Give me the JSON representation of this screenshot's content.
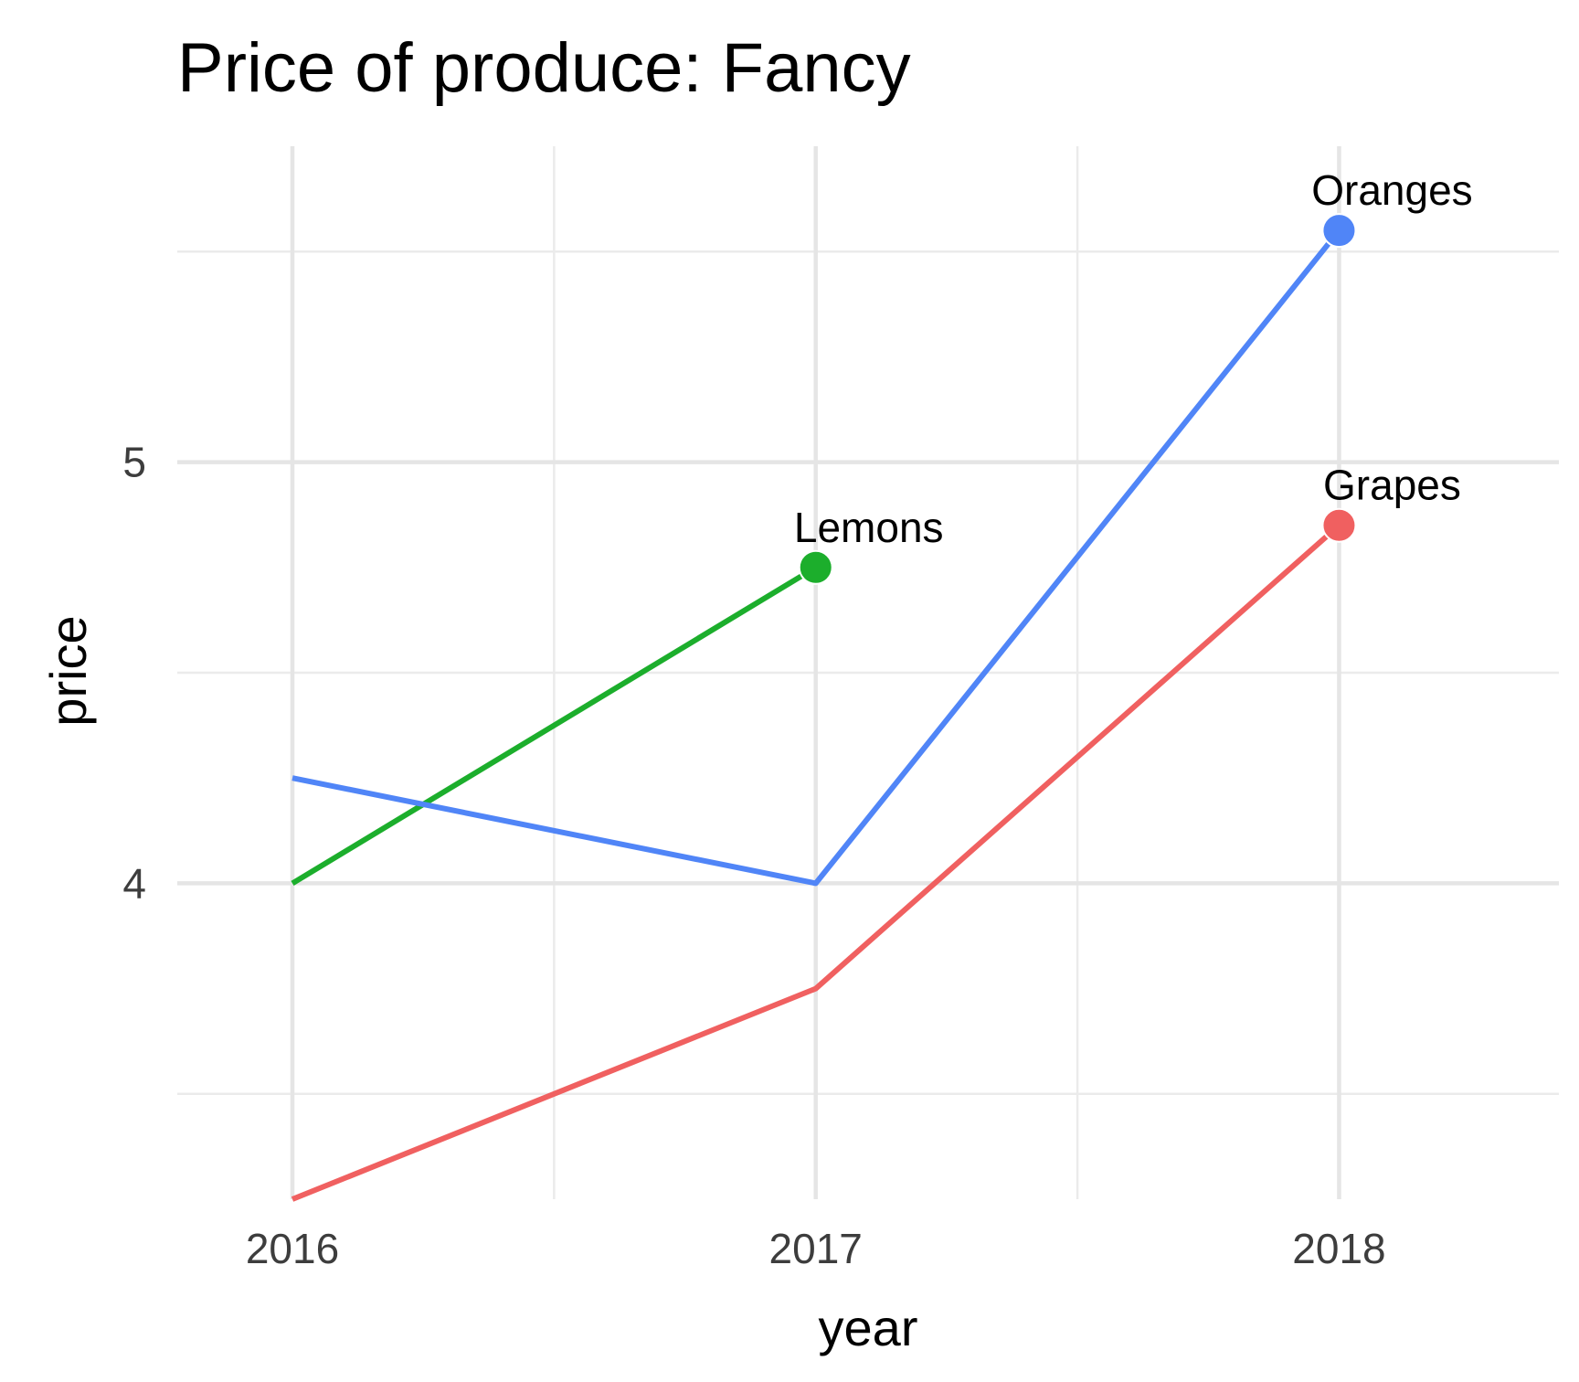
{
  "chart_data": {
    "type": "line",
    "title": "Price of produce: Fancy",
    "xlabel": "year",
    "ylabel": "price",
    "x": [
      2016,
      2017,
      2018
    ],
    "x_ticks": [
      "2016",
      "2017",
      "2018"
    ],
    "xlim": [
      2015.78,
      2018.42
    ],
    "y_ticks": [
      4,
      5
    ],
    "y_tick_labels": [
      "4",
      "5"
    ],
    "y_minor_ticks": [
      3.5,
      4.5,
      5.5
    ],
    "ylim": [
      3.25,
      5.75
    ],
    "grid": true,
    "legend": "none",
    "series": [
      {
        "name": "Grapes",
        "color": "#f06060",
        "x": [
          2016,
          2017,
          2018
        ],
        "values": [
          3.25,
          3.75,
          4.85
        ]
      },
      {
        "name": "Lemons",
        "color": "#1cae2c",
        "x": [
          2016,
          2017
        ],
        "values": [
          4.0,
          4.75
        ]
      },
      {
        "name": "Oranges",
        "color": "#5085f7",
        "x": [
          2016,
          2017,
          2018
        ],
        "values": [
          4.25,
          4.0,
          5.55
        ]
      }
    ]
  }
}
